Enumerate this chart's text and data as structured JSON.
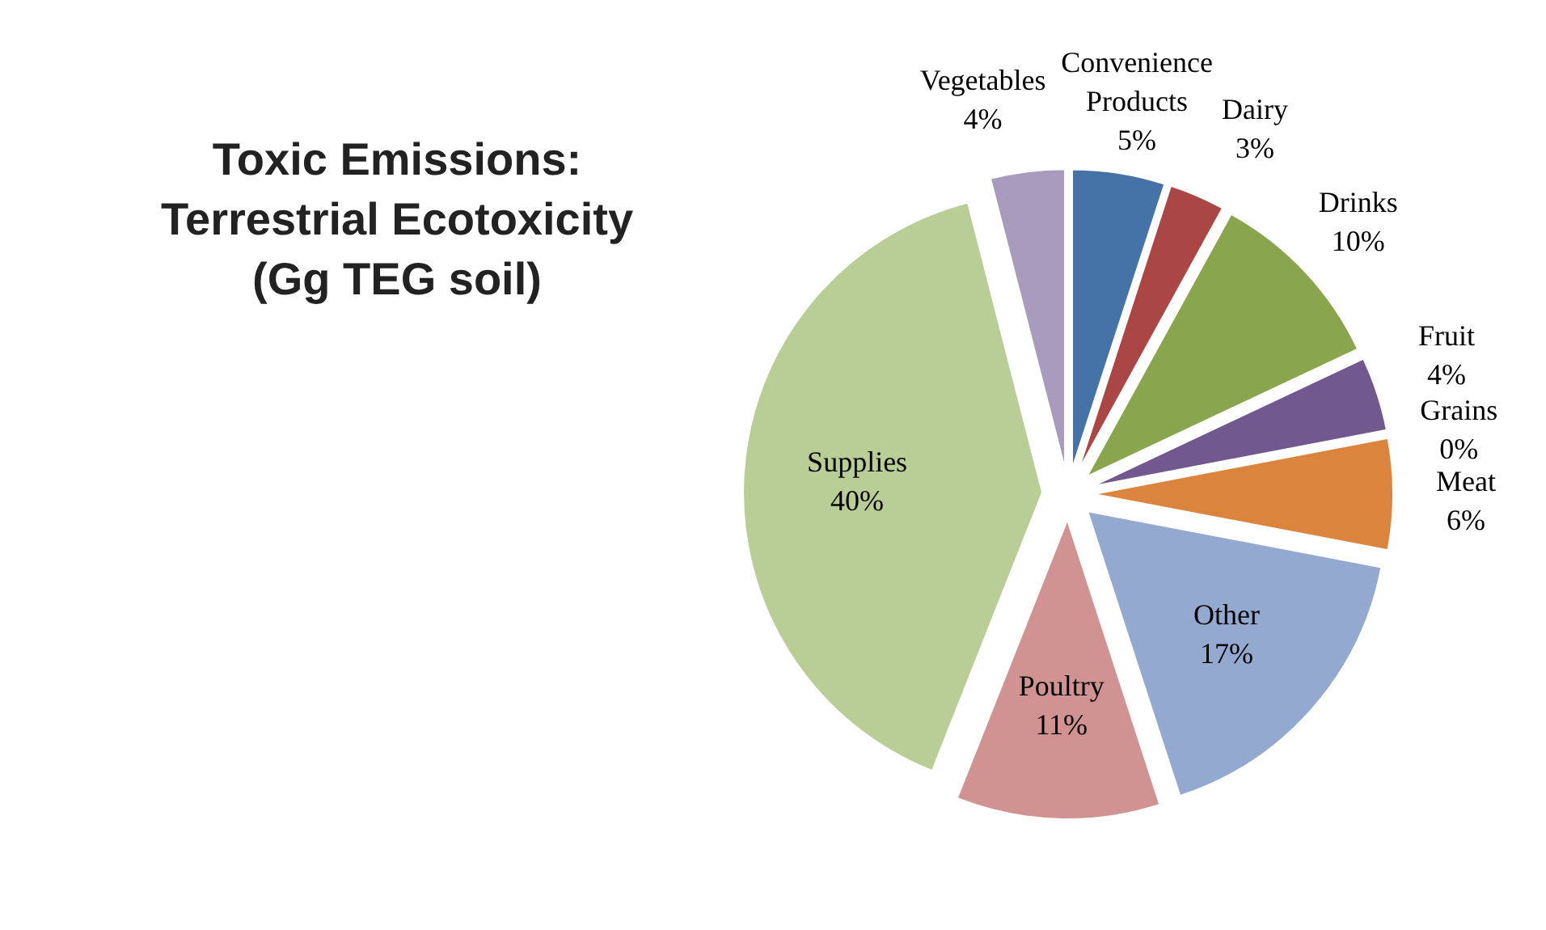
{
  "chart_data": {
    "type": "pie",
    "title": "Toxic Emissions:\nTerrestrial Ecotoxicity\n(Gg TEG soil)",
    "categories": [
      "Convenience Products",
      "Dairy",
      "Drinks",
      "Fruit",
      "Grains",
      "Meat",
      "Other",
      "Poultry",
      "Supplies",
      "Vegetables"
    ],
    "values": [
      5,
      3,
      10,
      4,
      0,
      6,
      17,
      11,
      40,
      4
    ],
    "value_labels": [
      "5%",
      "3%",
      "10%",
      "4%",
      "0%",
      "6%",
      "17%",
      "11%",
      "40%",
      "4%"
    ],
    "colors": [
      "#4572a7",
      "#aa4643",
      "#89a54e",
      "#71588f",
      "#4198af",
      "#db843d",
      "#93a9cf",
      "#d19392",
      "#b9cd96",
      "#a99bbd"
    ]
  }
}
